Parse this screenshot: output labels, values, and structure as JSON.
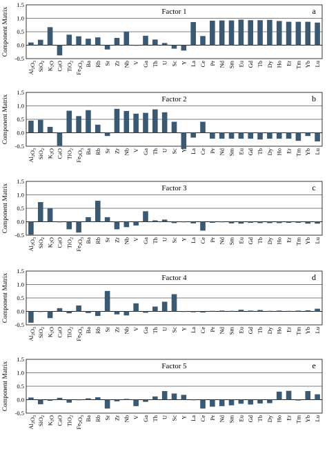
{
  "figure": {
    "ylabel": "Component Matrix",
    "bar_color": "#3a5a74"
  },
  "chart_data": [
    {
      "type": "bar",
      "title": "Factor 1",
      "panel_letter": "a",
      "ylabel": "Component Matrix",
      "ylim": [
        -0.5,
        1.5
      ],
      "yticks": [
        "-0.5",
        "0.0",
        "0.5",
        "1.0",
        "1.5"
      ],
      "categories": [
        "Al₂O₃",
        "SiO₂",
        "K₂O",
        "CaO",
        "TiO₂",
        "Fe₂O₃",
        "Ba",
        "Rb",
        "Sr",
        "Zr",
        "Nb",
        "V",
        "Ga",
        "Th",
        "U",
        "Sc",
        "Y",
        "La",
        "Ce",
        "Pr",
        "Nd",
        "Sm",
        "Eu",
        "Gd",
        "Tb",
        "Dy",
        "Ho",
        "Er",
        "Tm",
        "Yb",
        "Lu"
      ],
      "values": [
        0.1,
        0.2,
        0.67,
        -0.38,
        0.39,
        0.33,
        0.24,
        0.29,
        -0.16,
        0.27,
        0.5,
        0.0,
        0.35,
        0.21,
        0.08,
        -0.13,
        -0.2,
        0.86,
        0.34,
        0.91,
        0.92,
        0.92,
        0.95,
        0.93,
        0.93,
        0.94,
        0.9,
        0.87,
        0.87,
        0.87,
        0.84
      ]
    },
    {
      "type": "bar",
      "title": "Factor 2",
      "panel_letter": "b",
      "ylabel": "Component Matrix",
      "ylim": [
        -0.5,
        1.5
      ],
      "yticks": [
        "-0.5",
        "0.0",
        "0.5",
        "1.0",
        "1.5"
      ],
      "categories": [
        "Al₂O₃",
        "SiO₂",
        "K₂O",
        "CaO",
        "TiO₂",
        "Fe₂O₃",
        "Ba",
        "Rb",
        "Sr",
        "Zr",
        "Nb",
        "V",
        "Ga",
        "Th",
        "U",
        "Sc",
        "Y",
        "La",
        "Ce",
        "Pr",
        "Nd",
        "Sm",
        "Eu",
        "Gd",
        "Tb",
        "Dy",
        "Ho",
        "Er",
        "Tm",
        "Yb",
        "Lu"
      ],
      "values": [
        0.45,
        0.48,
        0.22,
        -0.48,
        0.82,
        0.62,
        0.84,
        0.3,
        -0.12,
        0.89,
        0.81,
        0.71,
        0.74,
        0.87,
        0.76,
        0.41,
        -0.6,
        -0.18,
        0.41,
        -0.22,
        -0.22,
        -0.22,
        -0.22,
        -0.22,
        -0.25,
        -0.22,
        -0.22,
        -0.22,
        -0.3,
        -0.12,
        -0.32
      ]
    },
    {
      "type": "bar",
      "title": "Factor 3",
      "panel_letter": "c",
      "ylabel": "Component Matrix",
      "ylim": [
        -0.5,
        1.5
      ],
      "yticks": [
        "-0.5",
        "0.0",
        "0.5",
        "1.0",
        "1.5"
      ],
      "categories": [
        "Al₂O₃",
        "SiO₂",
        "K₂O",
        "CaO",
        "TiO₂",
        "Fe₂O₃",
        "Ba",
        "Rb",
        "Sr",
        "Zr",
        "Nb",
        "V",
        "Ga",
        "Th",
        "U",
        "Sc",
        "Y",
        "La",
        "Ce",
        "Pr",
        "Nd",
        "Sm",
        "Eu",
        "Gd",
        "Tb",
        "Dy",
        "Ho",
        "Er",
        "Tm",
        "Yb",
        "Lu"
      ],
      "values": [
        -0.48,
        0.73,
        0.5,
        0.0,
        -0.28,
        -0.4,
        0.17,
        0.78,
        0.17,
        -0.28,
        -0.2,
        -0.14,
        0.39,
        0.05,
        0.08,
        -0.05,
        -0.02,
        -0.06,
        -0.33,
        -0.04,
        -0.02,
        -0.06,
        -0.07,
        -0.04,
        -0.05,
        -0.05,
        -0.05,
        -0.04,
        -0.04,
        -0.07,
        -0.07
      ]
    },
    {
      "type": "bar",
      "title": "Factor 4",
      "panel_letter": "d",
      "ylabel": "Component Matrix",
      "ylim": [
        -0.5,
        1.5
      ],
      "yticks": [
        "-0.5",
        "0.0",
        "0.5",
        "1.0",
        "1.5"
      ],
      "categories": [
        "Al₂O₃",
        "SiO₂",
        "K₂O",
        "CaO",
        "TiO₂",
        "Fe₂O₃",
        "Ba",
        "Rb",
        "Sr",
        "Zr",
        "Nb",
        "V",
        "Ga",
        "Th",
        "U",
        "Sc",
        "Y",
        "La",
        "Ce",
        "Pr",
        "Nd",
        "Sm",
        "Eu",
        "Gd",
        "Tb",
        "Dy",
        "Ho",
        "Er",
        "Tm",
        "Yb",
        "Lu"
      ],
      "values": [
        -0.42,
        0.0,
        -0.25,
        0.12,
        -0.07,
        0.22,
        -0.06,
        -0.17,
        0.76,
        -0.11,
        -0.15,
        0.3,
        -0.05,
        0.18,
        0.36,
        0.64,
        -0.02,
        -0.03,
        -0.04,
        0.02,
        0.03,
        0.02,
        0.06,
        0.03,
        0.05,
        0.02,
        0.03,
        0.02,
        0.03,
        0.04,
        0.1
      ]
    },
    {
      "type": "bar",
      "title": "Factor 5",
      "panel_letter": "e",
      "ylabel": "Component Matrix",
      "ylim": [
        -0.5,
        1.5
      ],
      "yticks": [
        "-0.5",
        "0.0",
        "0.5",
        "1.0",
        "1.5"
      ],
      "categories": [
        "Al₂O₃",
        "SiO₂",
        "K₂O",
        "CaO",
        "TiO₂",
        "Fe₂O₃",
        "Ba",
        "Rb",
        "Sr",
        "Zr",
        "Nb",
        "V",
        "Ga",
        "Th",
        "U",
        "Sc",
        "Y",
        "La",
        "Ce",
        "Pr",
        "Nd",
        "Sm",
        "Eu",
        "Gd",
        "Tb",
        "Dy",
        "Ho",
        "Er",
        "Tm",
        "Yb",
        "Lu"
      ],
      "values": [
        0.08,
        -0.17,
        -0.04,
        0.07,
        -0.11,
        -0.02,
        0.05,
        0.09,
        -0.33,
        -0.06,
        0.03,
        -0.24,
        -0.08,
        0.12,
        0.32,
        0.23,
        0.18,
        -0.02,
        -0.33,
        -0.26,
        -0.24,
        -0.21,
        -0.15,
        -0.18,
        -0.14,
        -0.13,
        0.3,
        0.33,
        -0.03,
        0.32,
        0.2
      ]
    }
  ]
}
